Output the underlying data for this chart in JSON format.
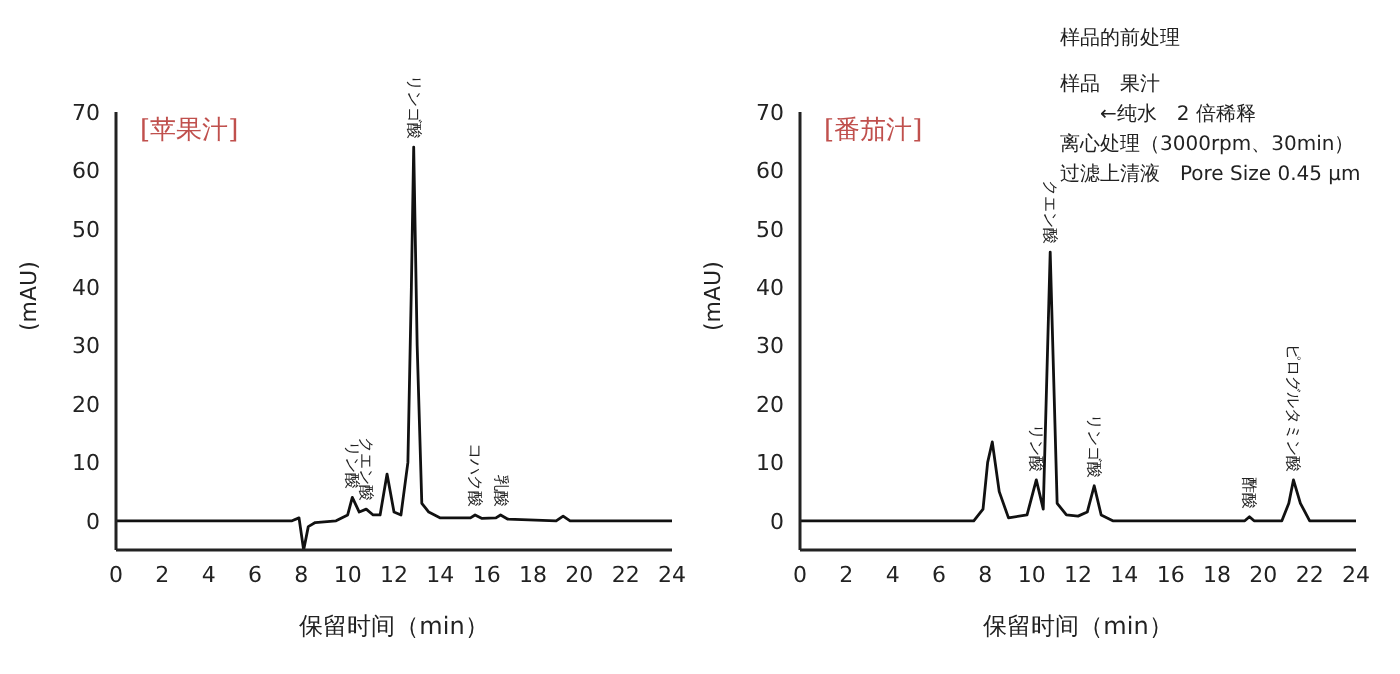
{
  "chart_data": [
    {
      "type": "line",
      "title": "[苹果汁]",
      "xlabel": "保留时间（min）",
      "ylabel": "(mAU)",
      "xlim": [
        0,
        24
      ],
      "xticks": [
        0,
        2,
        4,
        6,
        8,
        10,
        12,
        14,
        16,
        18,
        20,
        22,
        24
      ],
      "ylim": [
        -5,
        70
      ],
      "yticks": [
        0,
        10,
        20,
        30,
        40,
        50,
        60,
        70
      ],
      "marker": "none",
      "line_style": "solid",
      "series": [
        {
          "color": "#111111",
          "x": [
            0,
            7.6,
            7.9,
            8.1,
            8.3,
            8.6,
            9.5,
            10,
            10.2,
            10.5,
            10.8,
            11.1,
            11.4,
            11.7,
            12,
            12.3,
            12.6,
            12.75,
            12.85,
            13,
            13.2,
            13.5,
            14,
            15.3,
            15.5,
            15.8,
            16.4,
            16.6,
            16.9,
            19,
            19.3,
            19.6,
            24
          ],
          "values": [
            0,
            0,
            0.5,
            -5,
            -1,
            -0.3,
            0,
            1,
            4,
            1.5,
            2,
            1,
            1,
            8,
            1.5,
            1,
            10,
            40,
            64,
            30,
            3,
            1.5,
            0.5,
            0.5,
            1,
            0.4,
            0.5,
            1,
            0.3,
            0,
            0.8,
            0,
            0
          ]
        }
      ],
      "annotations": [
        {
          "text": "リン酸",
          "x": 10.2,
          "y": 4
        },
        {
          "text": "クエン酸",
          "x": 10.8,
          "y": 2
        },
        {
          "text": "リンゴ酸",
          "x": 12.85,
          "y": 64
        },
        {
          "text": "コハク酸",
          "x": 15.5,
          "y": 1
        },
        {
          "text": "乳酸",
          "x": 16.6,
          "y": 1
        }
      ]
    },
    {
      "type": "line",
      "title": "[番茄汁]",
      "xlabel": "保留时间（min）",
      "ylabel": "(mAU)",
      "xlim": [
        0,
        24
      ],
      "xticks": [
        0,
        2,
        4,
        6,
        8,
        10,
        12,
        14,
        16,
        18,
        20,
        22,
        24
      ],
      "ylim": [
        -5,
        70
      ],
      "yticks": [
        0,
        10,
        20,
        30,
        40,
        50,
        60,
        70
      ],
      "marker": "none",
      "line_style": "solid",
      "series": [
        {
          "color": "#111111",
          "x": [
            0,
            7.5,
            7.9,
            8.1,
            8.3,
            8.6,
            9,
            9.8,
            10.2,
            10.5,
            10.8,
            11.1,
            11.5,
            12,
            12.4,
            12.7,
            13,
            13.5,
            19.2,
            19.4,
            19.6,
            20.8,
            21.1,
            21.3,
            21.6,
            22,
            24
          ],
          "values": [
            0,
            0,
            2,
            10,
            13.5,
            5,
            0.5,
            1,
            7,
            2,
            46,
            3,
            1,
            0.8,
            1.5,
            6,
            1,
            0,
            0,
            0.7,
            0,
            0,
            3,
            7,
            3,
            0,
            0
          ]
        }
      ],
      "annotations": [
        "样品的前处理",
        "样品　果汁",
        "←纯水　2 倍稀释",
        "离心处理（3000rpm、30min）",
        "过滤上清液　Pore Size 0.45 μm",
        {
          "text": "リン酸",
          "x": 10.2,
          "y": 7
        },
        {
          "text": "クエン酸",
          "x": 10.8,
          "y": 46
        },
        {
          "text": "リンゴ酸",
          "x": 12.7,
          "y": 6
        },
        {
          "text": "酢酸",
          "x": 19.4,
          "y": 0.7
        },
        {
          "text": "ピログルタミン酸",
          "x": 21.3,
          "y": 7
        }
      ]
    }
  ]
}
